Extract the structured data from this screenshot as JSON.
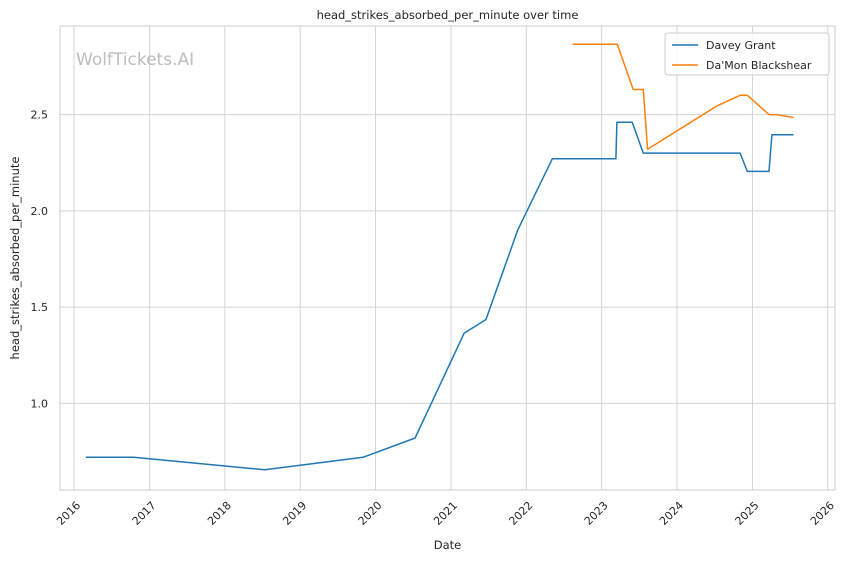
{
  "chart_data": {
    "type": "line",
    "title": "head_strikes_absorbed_per_minute over time",
    "xlabel": "Date",
    "ylabel": "head_strikes_absorbed_per_minute",
    "watermark": "WolfTickets.AI",
    "x_ticks": [
      "2016",
      "2017",
      "2018",
      "2019",
      "2020",
      "2021",
      "2022",
      "2023",
      "2024",
      "2025",
      "2026"
    ],
    "y_ticks": [
      "1.0",
      "1.5",
      "2.0",
      "2.5"
    ],
    "xlim": [
      "2015-10-25",
      "2026-02-05"
    ],
    "ylim": [
      0.55,
      2.96
    ],
    "grid": true,
    "legend_position": "top-right",
    "series": [
      {
        "name": "Davey Grant",
        "color": "#1f77b4",
        "points": [
          {
            "x": "2016-02-27",
            "y": 0.72
          },
          {
            "x": "2016-10-15",
            "y": 0.72
          },
          {
            "x": "2018-07-13",
            "y": 0.655
          },
          {
            "x": "2019-11-02",
            "y": 0.72
          },
          {
            "x": "2020-07-11",
            "y": 0.82
          },
          {
            "x": "2021-03-06",
            "y": 1.365
          },
          {
            "x": "2021-06-19",
            "y": 1.435
          },
          {
            "x": "2021-11-20",
            "y": 1.9
          },
          {
            "x": "2022-05-07",
            "y": 2.27
          },
          {
            "x": "2023-03-11",
            "y": 2.27
          },
          {
            "x": "2023-03-16",
            "y": 2.46
          },
          {
            "x": "2023-05-29",
            "y": 2.46
          },
          {
            "x": "2023-07-22",
            "y": 2.3
          },
          {
            "x": "2024-11-02",
            "y": 2.3
          },
          {
            "x": "2024-12-07",
            "y": 2.205
          },
          {
            "x": "2025-03-22",
            "y": 2.205
          },
          {
            "x": "2025-04-05",
            "y": 2.395
          },
          {
            "x": "2025-07-19",
            "y": 2.395
          }
        ]
      },
      {
        "name": "Da'Mon Blackshear",
        "color": "#ff7f0e",
        "points": [
          {
            "x": "2022-08-13",
            "y": 2.865
          },
          {
            "x": "2023-03-18",
            "y": 2.865
          },
          {
            "x": "2023-06-03",
            "y": 2.63
          },
          {
            "x": "2023-07-22",
            "y": 2.63
          },
          {
            "x": "2023-08-05",
            "y": 2.42
          },
          {
            "x": "2023-08-12",
            "y": 2.32
          },
          {
            "x": "2024-07-13",
            "y": 2.545
          },
          {
            "x": "2024-11-02",
            "y": 2.6
          },
          {
            "x": "2024-12-07",
            "y": 2.6
          },
          {
            "x": "2025-03-22",
            "y": 2.5
          },
          {
            "x": "2025-04-26",
            "y": 2.5
          },
          {
            "x": "2025-07-19",
            "y": 2.485
          }
        ]
      }
    ]
  }
}
